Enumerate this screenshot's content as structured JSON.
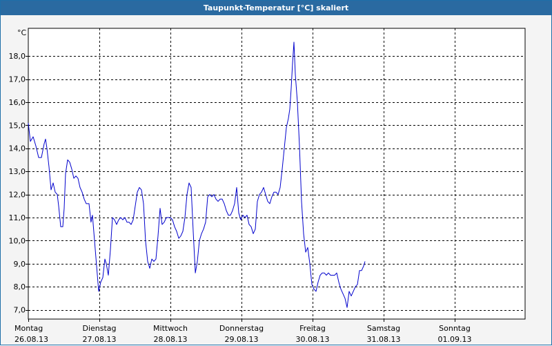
{
  "window": {
    "title": "Taupunkt-Temperatur [°C] skaliert"
  },
  "colors": {
    "title_bar": "#2a6aa1",
    "series_line": "#0000cc",
    "grid": "#000000",
    "background": "#f4f4f4"
  },
  "chart_data": {
    "type": "line",
    "title": "Taupunkt-Temperatur [°C] skaliert",
    "unit_label": "°C",
    "ylim": [
      6.6,
      19.2
    ],
    "yticks": [
      7.0,
      8.0,
      9.0,
      10.0,
      11.0,
      12.0,
      13.0,
      14.0,
      15.0,
      16.0,
      17.0,
      18.0
    ],
    "ytick_labels": [
      "7,0",
      "8,0",
      "9,0",
      "10,0",
      "11,0",
      "12,0",
      "13,0",
      "14,0",
      "15,0",
      "16,0",
      "17,0",
      "18,0"
    ],
    "xlim": [
      0,
      7
    ],
    "x_unit": "days from start of Montag 26.08.13",
    "xticks": [
      {
        "day": "Montag",
        "date": "26.08.13"
      },
      {
        "day": "Dienstag",
        "date": "27.08.13"
      },
      {
        "day": "Mittwoch",
        "date": "28.08.13"
      },
      {
        "day": "Donnerstag",
        "date": "29.08.13"
      },
      {
        "day": "Freitag",
        "date": "30.08.13"
      },
      {
        "day": "Samstag",
        "date": "31.08.13"
      },
      {
        "day": "Sonntag",
        "date": "01.09.13"
      }
    ],
    "grid": true,
    "series": [
      {
        "points": [
          [
            0.0,
            15.1
          ],
          [
            0.029,
            14.3
          ],
          [
            0.068,
            14.5
          ],
          [
            0.107,
            14.1
          ],
          [
            0.146,
            13.6
          ],
          [
            0.184,
            13.6
          ],
          [
            0.223,
            14.2
          ],
          [
            0.243,
            14.4
          ],
          [
            0.262,
            14.0
          ],
          [
            0.291,
            13.2
          ],
          [
            0.32,
            12.2
          ],
          [
            0.35,
            12.5
          ],
          [
            0.379,
            12.1
          ],
          [
            0.408,
            12.0
          ],
          [
            0.427,
            11.5
          ],
          [
            0.456,
            10.6
          ],
          [
            0.485,
            10.6
          ],
          [
            0.505,
            11.4
          ],
          [
            0.524,
            12.9
          ],
          [
            0.553,
            13.5
          ],
          [
            0.583,
            13.4
          ],
          [
            0.612,
            13.1
          ],
          [
            0.641,
            12.7
          ],
          [
            0.67,
            12.8
          ],
          [
            0.699,
            12.7
          ],
          [
            0.728,
            12.3
          ],
          [
            0.757,
            12.1
          ],
          [
            0.786,
            11.8
          ],
          [
            0.816,
            11.6
          ],
          [
            0.854,
            11.6
          ],
          [
            0.883,
            10.8
          ],
          [
            0.903,
            11.1
          ],
          [
            0.932,
            10.0
          ],
          [
            0.961,
            8.9
          ],
          [
            0.99,
            7.8
          ],
          [
            1.019,
            8.2
          ],
          [
            1.049,
            8.4
          ],
          [
            1.078,
            9.2
          ],
          [
            1.097,
            9.0
          ],
          [
            1.126,
            8.5
          ],
          [
            1.155,
            9.6
          ],
          [
            1.184,
            11.0
          ],
          [
            1.214,
            10.9
          ],
          [
            1.243,
            10.7
          ],
          [
            1.272,
            10.9
          ],
          [
            1.301,
            11.0
          ],
          [
            1.33,
            10.9
          ],
          [
            1.359,
            11.0
          ],
          [
            1.388,
            10.8
          ],
          [
            1.417,
            10.8
          ],
          [
            1.447,
            10.7
          ],
          [
            1.476,
            10.9
          ],
          [
            1.505,
            11.5
          ],
          [
            1.534,
            12.1
          ],
          [
            1.563,
            12.3
          ],
          [
            1.592,
            12.2
          ],
          [
            1.621,
            11.6
          ],
          [
            1.65,
            10.0
          ],
          [
            1.68,
            9.1
          ],
          [
            1.709,
            8.8
          ],
          [
            1.738,
            9.2
          ],
          [
            1.767,
            9.1
          ],
          [
            1.796,
            9.2
          ],
          [
            1.825,
            10.2
          ],
          [
            1.854,
            11.4
          ],
          [
            1.883,
            10.7
          ],
          [
            1.913,
            10.8
          ],
          [
            1.942,
            11.0
          ],
          [
            1.971,
            11.0
          ],
          [
            2.0,
            11.0
          ],
          [
            2.029,
            10.9
          ],
          [
            2.058,
            10.6
          ],
          [
            2.087,
            10.4
          ],
          [
            2.117,
            10.1
          ],
          [
            2.146,
            10.2
          ],
          [
            2.175,
            10.4
          ],
          [
            2.204,
            11.0
          ],
          [
            2.233,
            12.0
          ],
          [
            2.262,
            12.5
          ],
          [
            2.291,
            12.3
          ],
          [
            2.32,
            10.4
          ],
          [
            2.35,
            8.6
          ],
          [
            2.379,
            9.1
          ],
          [
            2.408,
            10.0
          ],
          [
            2.437,
            10.3
          ],
          [
            2.466,
            10.5
          ],
          [
            2.495,
            10.8
          ],
          [
            2.524,
            11.9
          ],
          [
            2.553,
            12.0
          ],
          [
            2.583,
            11.9
          ],
          [
            2.612,
            12.0
          ],
          [
            2.641,
            11.8
          ],
          [
            2.67,
            11.7
          ],
          [
            2.699,
            11.8
          ],
          [
            2.728,
            11.8
          ],
          [
            2.757,
            11.6
          ],
          [
            2.786,
            11.3
          ],
          [
            2.816,
            11.1
          ],
          [
            2.845,
            11.1
          ],
          [
            2.874,
            11.3
          ],
          [
            2.903,
            11.6
          ],
          [
            2.932,
            12.3
          ],
          [
            2.961,
            11.2
          ],
          [
            2.99,
            10.9
          ],
          [
            3.019,
            11.1
          ],
          [
            3.049,
            11.0
          ],
          [
            3.078,
            11.1
          ],
          [
            3.107,
            10.7
          ],
          [
            3.136,
            10.6
          ],
          [
            3.165,
            10.3
          ],
          [
            3.194,
            10.5
          ],
          [
            3.223,
            11.7
          ],
          [
            3.252,
            12.0
          ],
          [
            3.282,
            12.1
          ],
          [
            3.311,
            12.3
          ],
          [
            3.34,
            12.0
          ],
          [
            3.369,
            11.7
          ],
          [
            3.398,
            11.6
          ],
          [
            3.427,
            11.9
          ],
          [
            3.456,
            12.1
          ],
          [
            3.485,
            12.1
          ],
          [
            3.515,
            12.0
          ],
          [
            3.544,
            12.3
          ],
          [
            3.573,
            13.1
          ],
          [
            3.602,
            14.0
          ],
          [
            3.631,
            14.9
          ],
          [
            3.66,
            15.3
          ],
          [
            3.68,
            15.7
          ],
          [
            3.699,
            16.6
          ],
          [
            3.718,
            17.7
          ],
          [
            3.738,
            18.6
          ],
          [
            3.757,
            17.2
          ],
          [
            3.786,
            16.0
          ],
          [
            3.816,
            14.1
          ],
          [
            3.845,
            11.7
          ],
          [
            3.874,
            10.3
          ],
          [
            3.903,
            9.5
          ],
          [
            3.932,
            9.7
          ],
          [
            3.961,
            9.0
          ],
          [
            3.99,
            8.1
          ],
          [
            4.019,
            7.9
          ],
          [
            4.049,
            7.8
          ],
          [
            4.078,
            8.2
          ],
          [
            4.107,
            8.5
          ],
          [
            4.136,
            8.6
          ],
          [
            4.165,
            8.6
          ],
          [
            4.194,
            8.5
          ],
          [
            4.223,
            8.6
          ],
          [
            4.252,
            8.5
          ],
          [
            4.282,
            8.5
          ],
          [
            4.311,
            8.5
          ],
          [
            4.34,
            8.6
          ],
          [
            4.369,
            8.2
          ],
          [
            4.398,
            7.9
          ],
          [
            4.427,
            7.7
          ],
          [
            4.456,
            7.5
          ],
          [
            4.485,
            7.1
          ],
          [
            4.515,
            7.8
          ],
          [
            4.544,
            7.6
          ],
          [
            4.573,
            7.8
          ],
          [
            4.602,
            8.0
          ],
          [
            4.631,
            8.1
          ],
          [
            4.66,
            8.7
          ],
          [
            4.689,
            8.7
          ],
          [
            4.718,
            8.9
          ],
          [
            4.738,
            9.1
          ]
        ]
      }
    ]
  }
}
